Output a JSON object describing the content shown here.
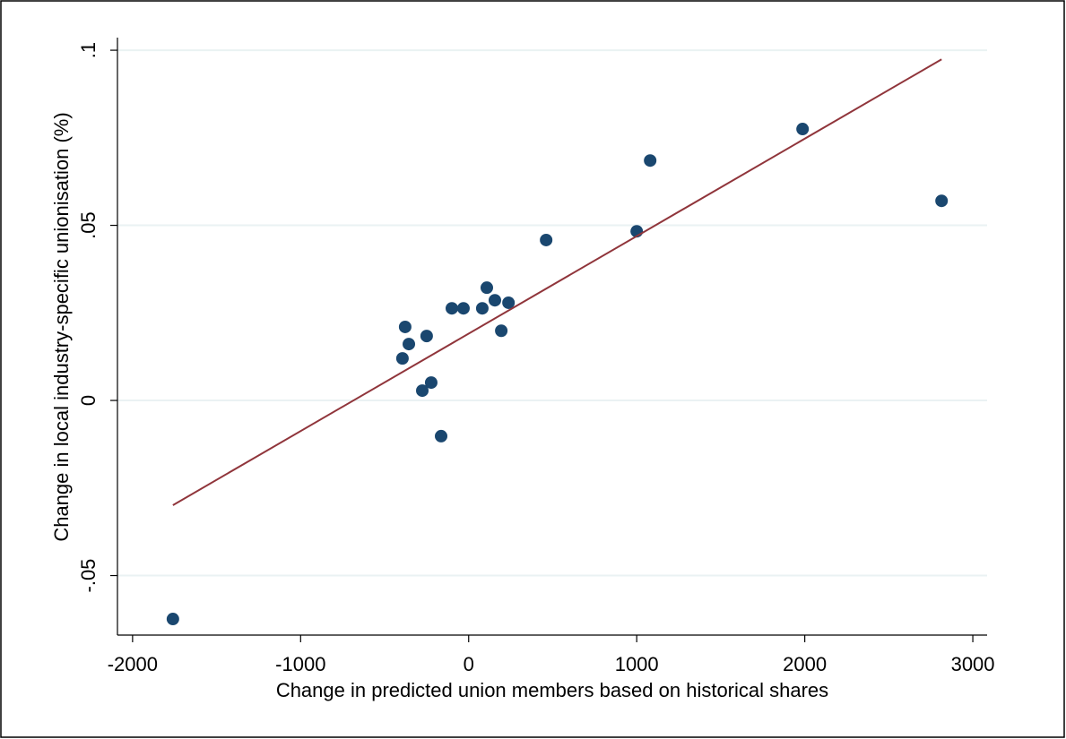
{
  "chart_data": {
    "type": "scatter",
    "x_label": "Change in predicted union members based on historical shares",
    "y_label": "Change in local industry-specific unionisation (%)",
    "xlim": [
      -2090,
      3085
    ],
    "ylim": [
      -0.067,
      0.1036
    ],
    "xticks": [
      -2000,
      -1000,
      0,
      1000,
      2000,
      3000
    ],
    "yticks": [
      {
        "value": -0.05,
        "label": "-.05"
      },
      0,
      {
        "value": 0.05,
        "label": ".05"
      },
      {
        "value": 0.1,
        "label": ".1"
      }
    ],
    "grid": true,
    "series": [
      {
        "type": "scatter",
        "color": "#1a476f",
        "x": [
          -1760,
          -394,
          -378,
          -356,
          -276,
          -250,
          -223,
          -164,
          -100,
          -31,
          81,
          108,
          156,
          194,
          237,
          461,
          1000,
          1080,
          1987,
          2814
        ],
        "values": [
          -0.0624,
          0.012,
          0.021,
          0.0161,
          0.0028,
          0.0184,
          0.0051,
          -0.0102,
          0.0263,
          0.0263,
          0.0263,
          0.0322,
          0.0286,
          0.0199,
          0.0279,
          0.0458,
          0.0483,
          0.0685,
          0.0775,
          0.057
        ]
      },
      {
        "type": "line",
        "color": "#90353b",
        "x": [
          -1760,
          2814
        ],
        "values": [
          -0.0299,
          0.0974
        ]
      }
    ]
  }
}
